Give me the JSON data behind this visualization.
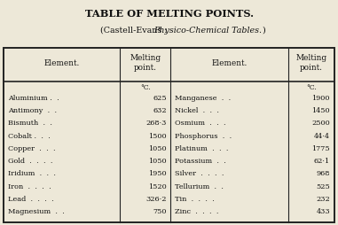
{
  "title": "TABLE OF MELTING POINTS.",
  "subtitle_pre": "(Castell-Evans : ",
  "subtitle_italic": "Physico-Chemical Tables.",
  "subtitle_end": ")",
  "unit_label": "°C.",
  "left_elements": [
    "Aluminium .  .",
    "Antimony  .  .",
    "Bismuth  .  .",
    "Cobalt .  .  .",
    "Copper  .  .  .",
    "Gold  .  .  .  .",
    "Iridium  .  .  .",
    "Iron  .  .  .  .",
    "Lead  .  .  .  .",
    "Magnesium  .  ."
  ],
  "left_values": [
    "625",
    "632",
    "268·3",
    "1500",
    "1050",
    "1050",
    "1950",
    "1520",
    "326·2",
    "750"
  ],
  "right_elements": [
    "Manganese  .  .",
    "Nickel  .  .  .",
    "Osmium  .  .  .",
    "Phosphorus  .  .",
    "Platinum  .  .  .",
    "Potassium  .  .",
    "Silver  .  .  .  .",
    "Tellurium  .  .",
    "Tin  .  .  .  .",
    "Zinc  .  .  .  ."
  ],
  "right_values": [
    "1900",
    "1450",
    "2500",
    "44·4",
    "1775",
    "62·1",
    "968",
    "525",
    "232",
    "433"
  ],
  "bg_color": "#ede8d8",
  "line_color": "#222222",
  "text_color": "#111111"
}
